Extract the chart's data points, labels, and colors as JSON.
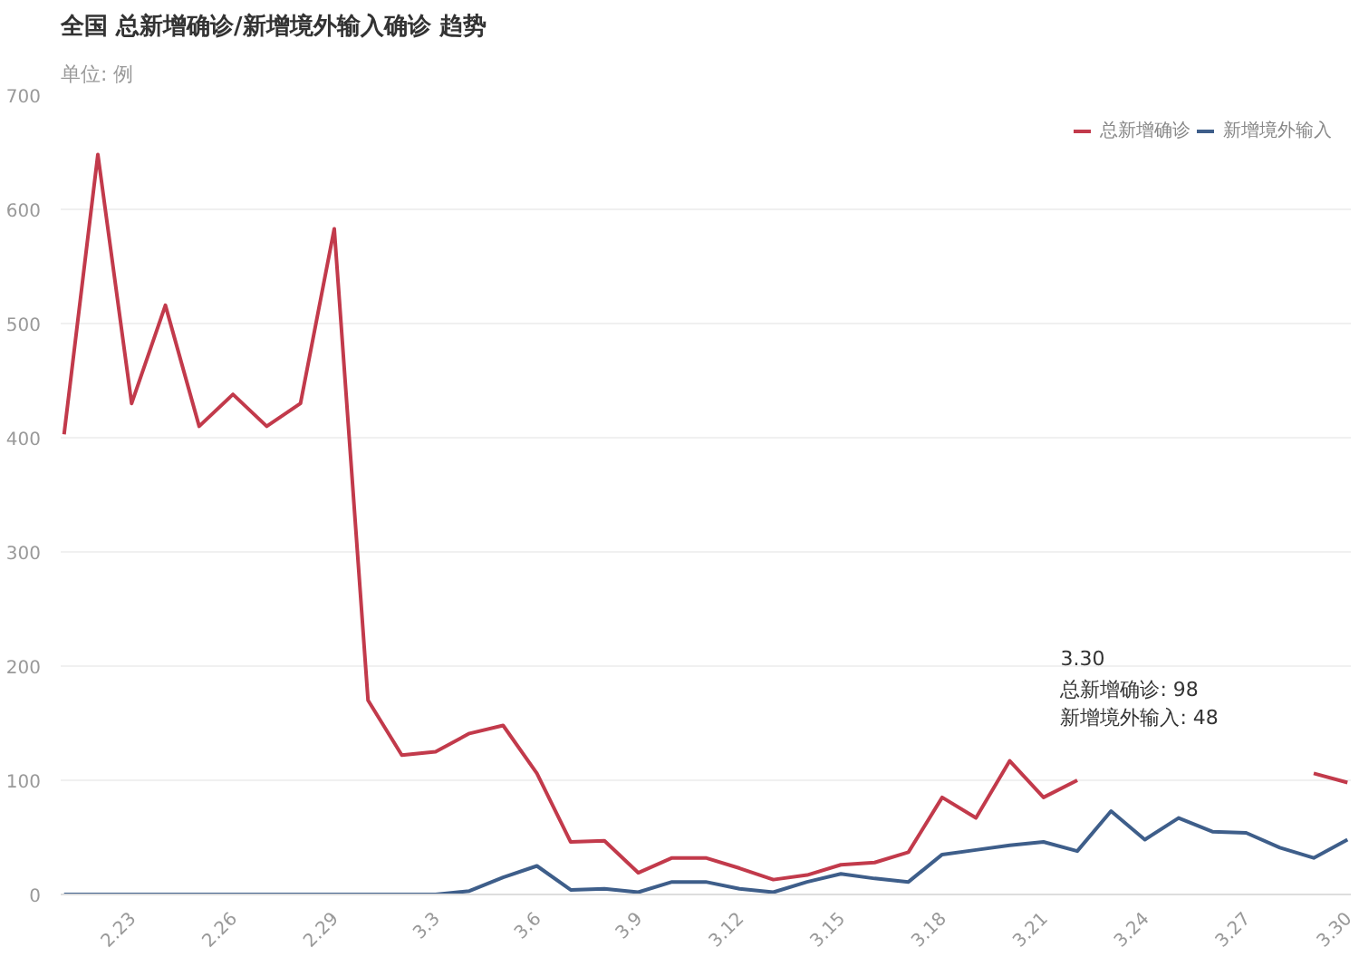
{
  "chart_data": {
    "type": "line",
    "title": "全国 总新增确诊/新增境外输入确诊 趋势",
    "subtitle": "单位: 例",
    "categories": [
      null,
      null,
      "2.23",
      null,
      null,
      "2.26",
      null,
      null,
      "2.29",
      null,
      null,
      "3.3",
      null,
      null,
      "3.6",
      null,
      null,
      "3.9",
      null,
      null,
      "3.12",
      null,
      null,
      "3.15",
      null,
      null,
      "3.18",
      null,
      null,
      "3.21",
      null,
      null,
      "3.24",
      null,
      null,
      "3.27",
      null,
      null,
      "3.30"
    ],
    "series": [
      {
        "name": "总新增确诊",
        "color": "#c23a4b",
        "values": [
          403,
          648,
          430,
          516,
          410,
          438,
          410,
          430,
          583,
          170,
          122,
          125,
          141,
          148,
          106,
          46,
          47,
          19,
          32,
          32,
          23,
          13,
          17,
          26,
          28,
          37,
          85,
          67,
          117,
          85,
          100,
          null,
          null,
          null,
          null,
          null,
          null,
          106,
          98
        ]
      },
      {
        "name": "新增境外输入",
        "color": "#3e5e8a",
        "values": [
          0,
          0,
          0,
          0,
          0,
          0,
          0,
          0,
          0,
          0,
          0,
          0,
          3,
          15,
          25,
          4,
          5,
          2,
          11,
          11,
          5,
          2,
          11,
          18,
          14,
          11,
          35,
          39,
          43,
          46,
          38,
          73,
          48,
          67,
          55,
          54,
          41,
          32,
          48
        ]
      }
    ],
    "ylim": [
      0,
      700
    ],
    "yticks": [
      0,
      100,
      200,
      300,
      400,
      500,
      600,
      700
    ],
    "grid": "y",
    "legend": "top right",
    "marker": "none",
    "line_style": "solid",
    "annotations": [
      "3.30",
      "总新增确诊: 98",
      "新增境外输入: 48"
    ]
  }
}
